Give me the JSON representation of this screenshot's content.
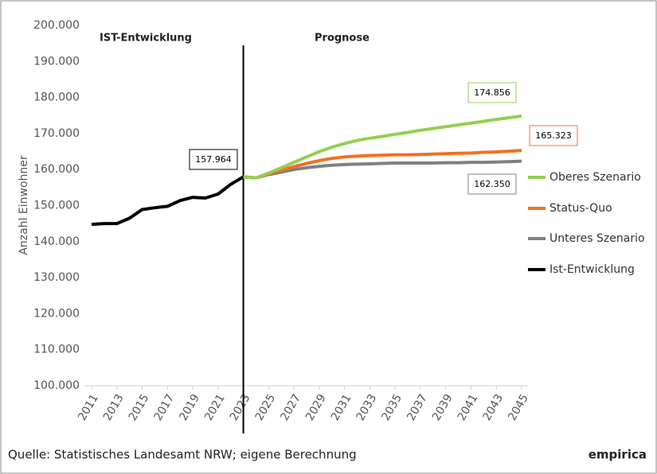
{
  "chart_data": {
    "type": "line",
    "y_label": "Anzahl Einwohner",
    "section_labels": [
      "IST-Entwicklung",
      "Prognose"
    ],
    "divider_x": 2023,
    "source": "Quelle: Statistisches Landesamt NRW; eigene Berechnung",
    "brand": "empirica",
    "x": [
      2011,
      2012,
      2013,
      2014,
      2015,
      2016,
      2017,
      2018,
      2019,
      2020,
      2021,
      2022,
      2023,
      2024,
      2025,
      2026,
      2027,
      2028,
      2029,
      2030,
      2031,
      2032,
      2033,
      2034,
      2035,
      2036,
      2037,
      2038,
      2039,
      2040,
      2041,
      2042,
      2043,
      2044,
      2045
    ],
    "xlim": [
      2011,
      2045
    ],
    "xticks": [
      2011,
      2013,
      2015,
      2017,
      2019,
      2021,
      2023,
      2025,
      2027,
      2029,
      2031,
      2033,
      2035,
      2037,
      2039,
      2041,
      2043,
      2045
    ],
    "ylim": [
      100000,
      200000
    ],
    "yticks": [
      {
        "value": 100000,
        "label": "100.000"
      },
      {
        "value": 110000,
        "label": "110.000"
      },
      {
        "value": 120000,
        "label": "120.000"
      },
      {
        "value": 130000,
        "label": "130.000"
      },
      {
        "value": 140000,
        "label": "140.000"
      },
      {
        "value": 150000,
        "label": "150.000"
      },
      {
        "value": 160000,
        "label": "160.000"
      },
      {
        "value": 170000,
        "label": "170.000"
      },
      {
        "value": 180000,
        "label": "180.000"
      },
      {
        "value": 190000,
        "label": "190.000"
      },
      {
        "value": 200000,
        "label": "200.000"
      }
    ],
    "series": [
      {
        "name": "Oberes Szenario",
        "color": "#92d050",
        "end_label": "174.856",
        "values": [
          null,
          null,
          null,
          null,
          null,
          null,
          null,
          null,
          null,
          null,
          null,
          null,
          157964,
          157700,
          159000,
          160500,
          162000,
          163500,
          165000,
          166200,
          167200,
          168100,
          168700,
          169200,
          169800,
          170300,
          170900,
          171400,
          171900,
          172400,
          172900,
          173400,
          173900,
          174400,
          174856
        ]
      },
      {
        "name": "Status-Quo",
        "color": "#f36f21",
        "end_label": "165.323",
        "values": [
          null,
          null,
          null,
          null,
          null,
          null,
          null,
          null,
          null,
          null,
          null,
          null,
          157964,
          157700,
          158800,
          159800,
          160800,
          161700,
          162500,
          163100,
          163500,
          163700,
          163900,
          164000,
          164100,
          164100,
          164200,
          164300,
          164400,
          164500,
          164600,
          164800,
          164900,
          165100,
          165323
        ]
      },
      {
        "name": "Unteres Szenario",
        "color": "#808080",
        "end_label": "162.350",
        "values": [
          null,
          null,
          null,
          null,
          null,
          null,
          null,
          null,
          null,
          null,
          null,
          null,
          157964,
          157700,
          158600,
          159300,
          160000,
          160500,
          160900,
          161200,
          161400,
          161500,
          161600,
          161700,
          161800,
          161800,
          161800,
          161800,
          161900,
          161900,
          162000,
          162000,
          162100,
          162200,
          162350
        ]
      },
      {
        "name": "Ist-Entwicklung",
        "color": "#000000",
        "end_label": "157.964",
        "values": [
          144800,
          145000,
          145000,
          146500,
          148900,
          149400,
          149800,
          151400,
          152300,
          152100,
          153200,
          155900,
          157964,
          null,
          null,
          null,
          null,
          null,
          null,
          null,
          null,
          null,
          null,
          null,
          null,
          null,
          null,
          null,
          null,
          null,
          null,
          null,
          null,
          null,
          null
        ]
      }
    ]
  }
}
